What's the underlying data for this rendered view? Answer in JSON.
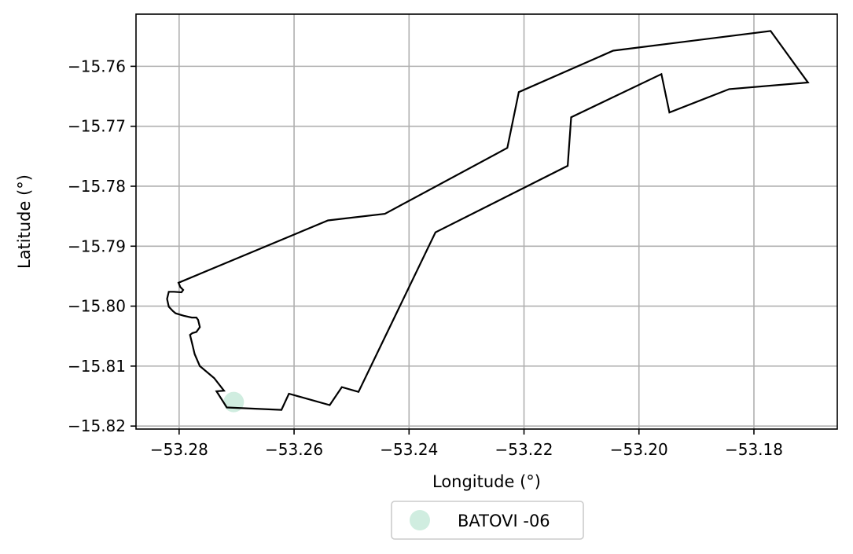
{
  "chart_data": {
    "type": "map",
    "xlabel": "Longitude (°)",
    "ylabel": "Latitude (°)",
    "xlim": [
      -53.2875,
      -53.1655
    ],
    "ylim": [
      -15.8205,
      -15.7513
    ],
    "xticks": [
      -53.28,
      -53.26,
      -53.24,
      -53.22,
      -53.2,
      -53.18
    ],
    "yticks": [
      -15.82,
      -15.81,
      -15.8,
      -15.79,
      -15.78,
      -15.77,
      -15.76
    ],
    "xtick_labels": [
      "−53.28",
      "−53.26",
      "−53.24",
      "−53.22",
      "−53.20",
      "−53.18"
    ],
    "ytick_labels": [
      "−15.82",
      "−15.81",
      "−15.80",
      "−15.79",
      "−15.78",
      "−15.77",
      "−15.76"
    ],
    "grid": true,
    "legend_placement": "bottom-center",
    "boundary_color": "#000000",
    "boundary": [
      [
        -53.2801,
        -15.7961
      ],
      [
        -53.2541,
        -15.7857
      ],
      [
        -53.2442,
        -15.7846
      ],
      [
        -53.2229,
        -15.7736
      ],
      [
        -53.2209,
        -15.7643
      ],
      [
        -53.2045,
        -15.7574
      ],
      [
        -53.1771,
        -15.7541
      ],
      [
        -53.1706,
        -15.7627
      ],
      [
        -53.1843,
        -15.7638
      ],
      [
        -53.1947,
        -15.7677
      ],
      [
        -53.1961,
        -15.7613
      ],
      [
        -53.2118,
        -15.7685
      ],
      [
        -53.2124,
        -15.7766
      ],
      [
        -53.2354,
        -15.7877
      ],
      [
        -53.2488,
        -15.8143
      ],
      [
        -53.2517,
        -15.8135
      ],
      [
        -53.2538,
        -15.8165
      ],
      [
        -53.2609,
        -15.8146
      ],
      [
        -53.2622,
        -15.8173
      ],
      [
        -53.2717,
        -15.8169
      ],
      [
        -53.2735,
        -15.8142
      ],
      [
        -53.2722,
        -15.8141
      ],
      [
        -53.2739,
        -15.812
      ],
      [
        -53.2764,
        -15.81
      ],
      [
        -53.2773,
        -15.808
      ],
      [
        -53.2777,
        -15.8064
      ],
      [
        -53.2781,
        -15.8048
      ],
      [
        -53.2777,
        -15.8045
      ],
      [
        -53.277,
        -15.8043
      ],
      [
        -53.2764,
        -15.8035
      ],
      [
        -53.2767,
        -15.8023
      ],
      [
        -53.277,
        -15.8019
      ],
      [
        -53.2778,
        -15.8019
      ],
      [
        -53.2792,
        -15.8016
      ],
      [
        -53.2806,
        -15.8012
      ],
      [
        -53.2811,
        -15.8008
      ],
      [
        -53.2818,
        -15.8001
      ],
      [
        -53.2821,
        -15.7988
      ],
      [
        -53.2818,
        -15.7976
      ],
      [
        -53.2809,
        -15.7976
      ],
      [
        -53.2796,
        -15.7977
      ],
      [
        -53.2793,
        -15.7973
      ],
      [
        -53.2798,
        -15.7968
      ],
      [
        -53.2801,
        -15.7961
      ]
    ],
    "series": [
      {
        "name": "BATOVI -06",
        "color": "#d0ede0",
        "points": [
          [
            -53.2705,
            -15.816
          ]
        ]
      }
    ]
  }
}
